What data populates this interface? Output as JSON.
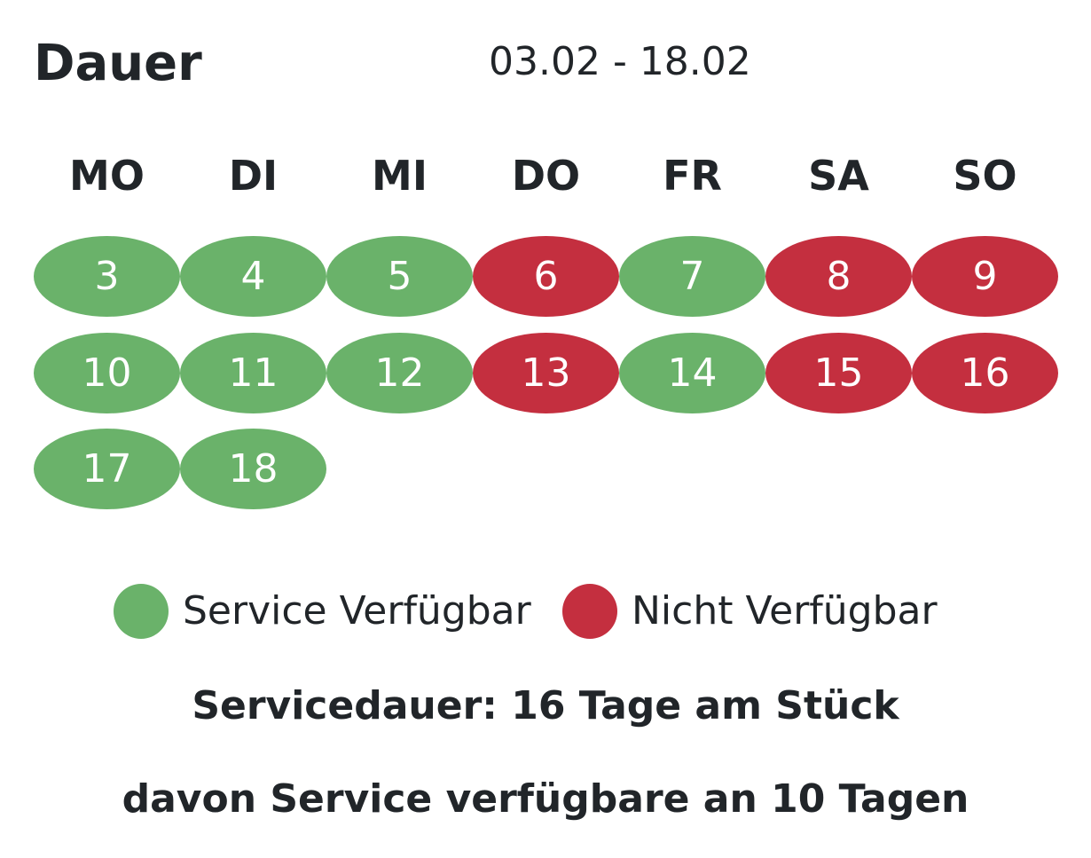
{
  "header": {
    "title": "Dauer",
    "date_range": "03.02 - 18.02"
  },
  "weekdays": [
    "MO",
    "DI",
    "MI",
    "DO",
    "FR",
    "SA",
    "SO"
  ],
  "colors": {
    "available": "#6ab26a",
    "unavailable": "#c42f3f"
  },
  "days": [
    {
      "label": "3",
      "status": "available"
    },
    {
      "label": "4",
      "status": "available"
    },
    {
      "label": "5",
      "status": "available"
    },
    {
      "label": "6",
      "status": "unavailable"
    },
    {
      "label": "7",
      "status": "available"
    },
    {
      "label": "8",
      "status": "unavailable"
    },
    {
      "label": "9",
      "status": "unavailable"
    },
    {
      "label": "10",
      "status": "available"
    },
    {
      "label": "11",
      "status": "available"
    },
    {
      "label": "12",
      "status": "available"
    },
    {
      "label": "13",
      "status": "unavailable"
    },
    {
      "label": "14",
      "status": "available"
    },
    {
      "label": "15",
      "status": "unavailable"
    },
    {
      "label": "16",
      "status": "unavailable"
    },
    {
      "label": "17",
      "status": "available"
    },
    {
      "label": "18",
      "status": "available"
    }
  ],
  "legend": {
    "available_label": "Service Verfügbar",
    "unavailable_label": "Nicht Verfügbar"
  },
  "summary": {
    "duration_text": "Servicedauer: 16 Tage am Stück",
    "available_text": "davon Service verfügbare an 10 Tagen"
  }
}
